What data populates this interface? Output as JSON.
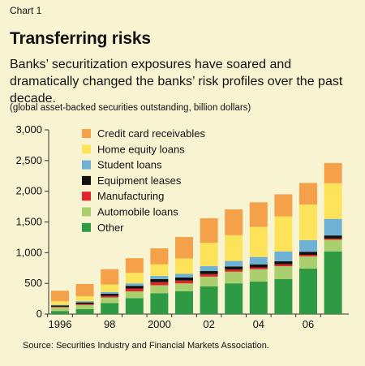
{
  "header": {
    "chart_label": "Chart 1",
    "title": "Transferring risks",
    "subtitle": "Banks’ securitization exposures have soared and dramatically changed the banks’ risk profiles over the past decade.",
    "units": "(global asset-backed securities outstanding, billion dollars)"
  },
  "footer": {
    "source": "Source: Securities Industry and Financial Markets Association."
  },
  "colors": {
    "background": "#f8f4d2",
    "credit_card": "#f4a14a",
    "home_equity": "#fde35a",
    "student": "#6fb1d4",
    "equipment": "#111111",
    "manufacturing": "#e0242a",
    "automobile": "#a9cf6e",
    "other": "#2f9a44"
  },
  "chart_data": {
    "type": "bar",
    "stacked": true,
    "x": [
      1996,
      1997,
      1998,
      1999,
      2000,
      2001,
      2002,
      2003,
      2004,
      2005,
      2006,
      2007
    ],
    "x_tick_labels": [
      "1996",
      "98",
      "2000",
      "02",
      "04",
      "06"
    ],
    "x_tick_values": [
      1996,
      1998,
      2000,
      2002,
      2004,
      2006
    ],
    "ylim": [
      0,
      3000
    ],
    "y_ticks": [
      0,
      500,
      1000,
      1500,
      2000,
      2500,
      3000
    ],
    "y_tick_labels": [
      "0",
      "500",
      "1,000",
      "1,500",
      "2,000",
      "2,500",
      "3,000"
    ],
    "legend_position": "top-left",
    "grid": false,
    "series": [
      {
        "name": "Other",
        "color_key": "other",
        "values": [
          50,
          80,
          180,
          260,
          340,
          370,
          450,
          500,
          530,
          570,
          740,
          1020
        ]
      },
      {
        "name": "Automobile loans",
        "color_key": "automobile",
        "values": [
          60,
          70,
          90,
          110,
          130,
          130,
          160,
          190,
          200,
          210,
          200,
          190
        ]
      },
      {
        "name": "Manufacturing",
        "color_key": "manufacturing",
        "values": [
          10,
          15,
          25,
          45,
          50,
          45,
          40,
          35,
          30,
          30,
          25,
          20
        ]
      },
      {
        "name": "Equipment leases",
        "color_key": "equipment",
        "values": [
          20,
          25,
          35,
          45,
          50,
          50,
          50,
          50,
          50,
          50,
          50,
          50
        ]
      },
      {
        "name": "Student loans",
        "color_key": "student",
        "values": [
          10,
          20,
          30,
          40,
          50,
          60,
          80,
          90,
          120,
          160,
          190,
          270
        ]
      },
      {
        "name": "Home equity loans",
        "color_key": "home_equity",
        "values": [
          60,
          80,
          120,
          170,
          190,
          250,
          380,
          420,
          490,
          570,
          580,
          580
        ]
      },
      {
        "name": "Credit card receivables",
        "color_key": "credit_card",
        "values": [
          170,
          200,
          250,
          240,
          260,
          350,
          400,
          420,
          400,
          360,
          350,
          330
        ]
      }
    ],
    "legend_order": [
      "Credit card receivables",
      "Home equity loans",
      "Student loans",
      "Equipment leases",
      "Manufacturing",
      "Automobile loans",
      "Other"
    ]
  }
}
